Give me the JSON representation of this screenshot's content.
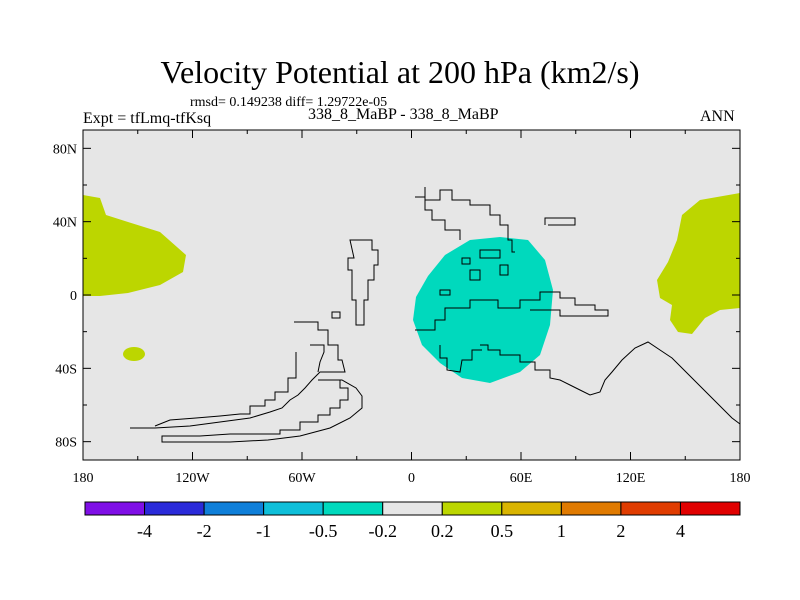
{
  "title": "Velocity Potential at 200 hPa (km2/s)",
  "stats": "rmsd= 0.149238 diff= 1.29722e-05",
  "experiment": "Expt = tfLmq-tfKsq",
  "cases": "338_8_MaBP - 338_8_MaBP",
  "season": "ANN",
  "colors": {
    "background_field": "#e6e6e6",
    "positive_small": "#bcd600",
    "negative_small": "#00d9bd"
  },
  "map": {
    "projection": "cylindrical-equidistant",
    "lon_range": [
      -180,
      180
    ],
    "lat_range": [
      -90,
      90
    ],
    "x_tick_labels": [
      "180",
      "120W",
      "60W",
      "0",
      "60E",
      "120E",
      "180"
    ],
    "y_tick_labels": [
      "80N",
      "40N",
      "0",
      "40S",
      "80S"
    ]
  },
  "colorbar": {
    "colors": [
      "#7f0fe6",
      "#2a2ad9",
      "#0f7fd9",
      "#0fbfd9",
      "#00d9bd",
      "#e6e6e6",
      "#bcd600",
      "#d9b400",
      "#e07a00",
      "#e03c00",
      "#e00000"
    ],
    "labels": [
      "-4",
      "-2",
      "-1",
      "-0.5",
      "-0.2",
      "0.2",
      "0.5",
      "1",
      "2",
      "4"
    ]
  }
}
